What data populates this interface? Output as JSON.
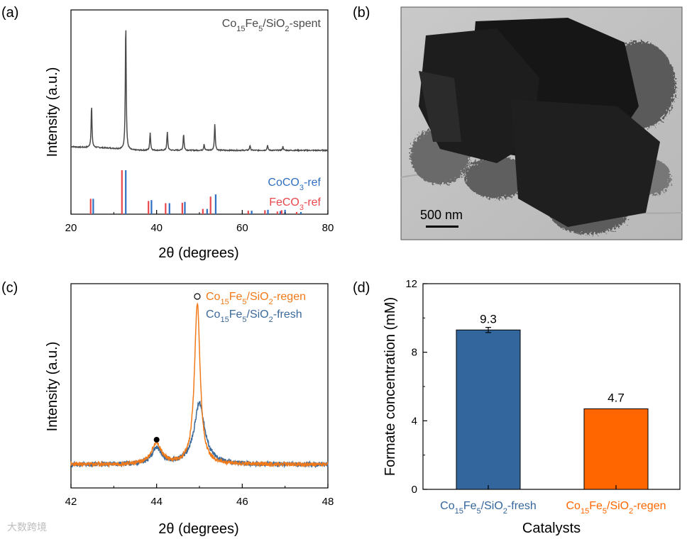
{
  "panels": {
    "a": {
      "label": "(a)"
    },
    "b": {
      "label": "(b)"
    },
    "c": {
      "label": "(c)"
    },
    "d": {
      "label": "(d)"
    }
  },
  "colors": {
    "spent": "#4a4a4a",
    "coco3": "#2f6fc2",
    "feco3": "#e8474c",
    "regen": "#f07a1a",
    "fresh": "#3c6a9a",
    "bar_fresh": "#33669c",
    "bar_regen": "#ff6600"
  },
  "chart_data": [
    {
      "id": "a",
      "type": "line",
      "xlabel": "2θ (degrees)",
      "ylabel": "Intensity (a.u.)",
      "xlim": [
        20,
        80
      ],
      "xticks": [
        "20",
        "40",
        "60",
        "80"
      ],
      "series": [
        {
          "name": "Co15Fe5/SiO2-spent",
          "label_parts": [
            "Co",
            "15",
            "Fe",
            "5",
            "/SiO",
            "2",
            "-spent"
          ],
          "peaks_2theta": [
            24.8,
            32.8,
            38.5,
            42.5,
            46.3,
            51.1,
            53.6,
            61.8,
            65.9,
            69.5
          ],
          "peak_rel_intensity": [
            0.33,
            1.0,
            0.14,
            0.14,
            0.13,
            0.05,
            0.21,
            0.04,
            0.04,
            0.03
          ]
        }
      ],
      "references": [
        {
          "name": "CoCO3-ref",
          "label_parts": [
            "CoCO",
            "3",
            "-ref"
          ],
          "lines_2theta": [
            25.0,
            32.6,
            38.6,
            42.8,
            46.4,
            51.6,
            53.6,
            62.0,
            65.8,
            68.7,
            69.8,
            73.5
          ],
          "rel_intensity": [
            0.35,
            1.0,
            0.32,
            0.25,
            0.28,
            0.12,
            0.45,
            0.08,
            0.1,
            0.07,
            0.1,
            0.05
          ]
        },
        {
          "name": "FeCO3-ref",
          "label_parts": [
            "FeCO",
            "3",
            "-ref"
          ],
          "lines_2theta": [
            24.8,
            32.1,
            38.3,
            42.3,
            46.2,
            51.0,
            52.8,
            61.6,
            65.5,
            68.4,
            69.4,
            72.9
          ],
          "rel_intensity": [
            0.35,
            1.0,
            0.3,
            0.25,
            0.26,
            0.12,
            0.4,
            0.08,
            0.09,
            0.06,
            0.09,
            0.05
          ]
        }
      ]
    },
    {
      "id": "b",
      "type": "image",
      "scale_bar": "500 nm"
    },
    {
      "id": "c",
      "type": "line",
      "xlabel": "2θ (degrees)",
      "ylabel": "Intensity (a.u.)",
      "xlim": [
        42,
        48
      ],
      "xticks": [
        "42",
        "44",
        "46",
        "48"
      ],
      "series": [
        {
          "name": "Co15Fe5/SiO2-regen",
          "label_parts": [
            "Co",
            "15",
            "Fe",
            "5",
            "/SiO",
            "2",
            "-regen"
          ],
          "peaks": [
            {
              "x": 44.0,
              "h": 0.13,
              "w": 0.14
            },
            {
              "x": 44.95,
              "h": 1.0,
              "w": 0.08
            }
          ]
        },
        {
          "name": "Co15Fe5/SiO2-fresh",
          "label_parts": [
            "Co",
            "15",
            "Fe",
            "5",
            "/SiO",
            "2",
            "-fresh"
          ],
          "peaks": [
            {
              "x": 44.0,
              "h": 0.1,
              "w": 0.14
            },
            {
              "x": 45.0,
              "h": 0.38,
              "w": 0.15
            }
          ]
        }
      ],
      "markers": [
        {
          "symbol": "filled-circle",
          "x": 44.0
        },
        {
          "symbol": "open-circle",
          "x": 44.95
        }
      ]
    },
    {
      "id": "d",
      "type": "bar",
      "xlabel": "Catalysts",
      "ylabel": "Formate concentration (mM)",
      "ylim": [
        0,
        12
      ],
      "yticks": [
        "0",
        "4",
        "8",
        "12"
      ],
      "categories": [
        "Co15Fe5/SiO2-fresh",
        "Co15Fe5/SiO2-regen"
      ],
      "category_label_parts": [
        [
          "Co",
          "15",
          "Fe",
          "5",
          "/SiO",
          "2",
          "-fresh"
        ],
        [
          "Co",
          "15",
          "Fe",
          "5",
          "/SiO",
          "2",
          "-regen"
        ]
      ],
      "values": [
        9.3,
        4.7
      ],
      "value_labels": [
        "9.3",
        "4.7"
      ],
      "error": [
        0.15,
        0
      ]
    }
  ],
  "watermark": "大数跨境"
}
